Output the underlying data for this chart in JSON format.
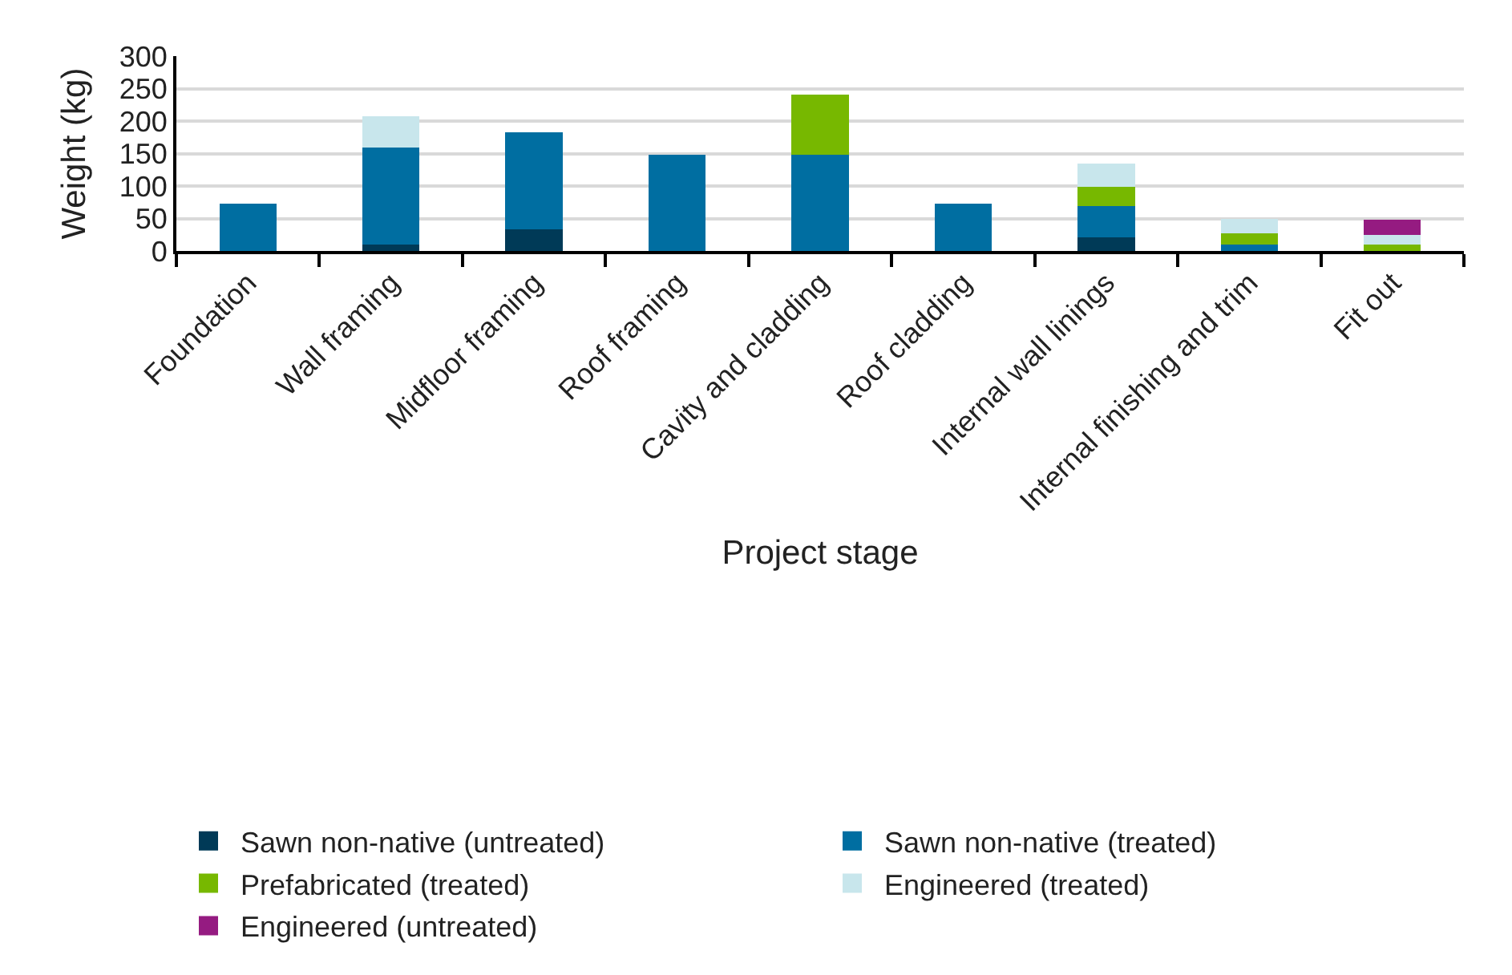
{
  "chart_data": {
    "type": "bar",
    "stacked": true,
    "xlabel": "Project stage",
    "ylabel": "Weight (kg)",
    "categories": [
      "Foundation",
      "Wall framing",
      "Midfloor framing",
      "Roof framing",
      "Cavity and cladding",
      "Roof cladding",
      "Internal wall linings",
      "Internal finishing and trim",
      "Fit out"
    ],
    "series": [
      {
        "name": "Sawn non-native (untreated)",
        "color": "#003a57",
        "values": [
          0,
          10,
          33,
          0,
          0,
          0,
          21,
          0,
          0
        ]
      },
      {
        "name": "Sawn non-native (treated)",
        "color": "#006ea1",
        "values": [
          73,
          149,
          150,
          148,
          148,
          73,
          48,
          10,
          0
        ]
      },
      {
        "name": "Prefabricated (treated)",
        "color": "#77b800",
        "values": [
          0,
          0,
          0,
          0,
          93,
          0,
          30,
          17,
          10
        ]
      },
      {
        "name": "Engineered (treated)",
        "color": "#c8e6ec",
        "values": [
          0,
          48,
          0,
          0,
          0,
          0,
          36,
          22,
          15
        ]
      },
      {
        "name": "Engineered (untreated)",
        "color": "#951b81",
        "values": [
          0,
          0,
          0,
          0,
          0,
          0,
          0,
          0,
          23
        ]
      }
    ],
    "ylim": [
      0,
      300
    ],
    "yticks": [
      0,
      50,
      100,
      150,
      200,
      250,
      300
    ],
    "grid": "y",
    "legend": "bottom"
  }
}
